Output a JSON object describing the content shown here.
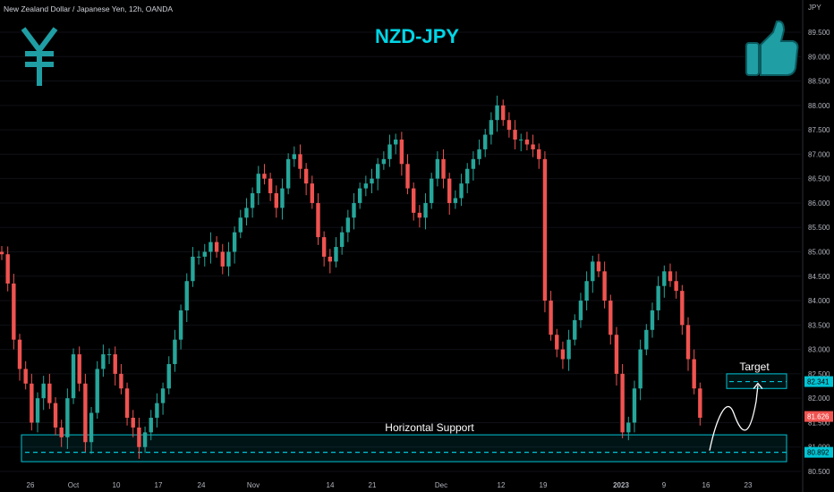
{
  "header": {
    "symbol_info": "New Zealand Dollar / Japanese Yen, 12h, OANDA"
  },
  "chart_data": {
    "type": "candlestick",
    "title": "NZD-JPY",
    "currency_label": "JPY",
    "y_axis_ticks": [
      "89.500",
      "89.000",
      "88.500",
      "88.000",
      "87.500",
      "87.000",
      "86.500",
      "86.000",
      "85.500",
      "85.000",
      "84.500",
      "84.000",
      "83.500",
      "83.000",
      "82.500",
      "82.000",
      "81.500",
      "81.000",
      "80.500"
    ],
    "ylim": [
      80.4,
      89.8
    ],
    "x_axis_ticks": [
      "26",
      "Oct",
      "10",
      "17",
      "24",
      "Nov",
      "14",
      "21",
      "Dec",
      "12",
      "19",
      "2023",
      "9",
      "16",
      "23"
    ],
    "closes": [
      84.95,
      84.35,
      83.2,
      82.6,
      82.3,
      81.5,
      82.0,
      82.3,
      81.9,
      81.4,
      81.2,
      82.0,
      82.9,
      82.3,
      81.1,
      81.7,
      82.6,
      82.9,
      82.9,
      82.5,
      82.2,
      81.6,
      81.4,
      81.0,
      81.3,
      81.6,
      81.9,
      82.2,
      82.7,
      83.2,
      83.8,
      84.4,
      84.9,
      84.9,
      85.0,
      85.2,
      85.0,
      84.7,
      85.0,
      85.4,
      85.7,
      85.9,
      86.2,
      86.6,
      86.5,
      86.2,
      85.9,
      86.3,
      86.9,
      87.0,
      86.7,
      86.4,
      86.0,
      85.3,
      84.9,
      84.8,
      85.1,
      85.4,
      85.7,
      86.0,
      86.3,
      86.4,
      86.5,
      86.8,
      86.9,
      87.2,
      87.3,
      86.8,
      86.3,
      85.8,
      85.7,
      86.0,
      86.5,
      86.9,
      86.5,
      86.0,
      86.1,
      86.4,
      86.7,
      86.9,
      87.1,
      87.4,
      87.7,
      88.0,
      87.7,
      87.5,
      87.3,
      87.3,
      87.2,
      87.1,
      86.9,
      84.0,
      83.3,
      83.0,
      82.8,
      83.2,
      83.6,
      84.0,
      84.4,
      84.8,
      84.6,
      84.0,
      83.3,
      82.5,
      81.3,
      81.5,
      82.2,
      83.0,
      83.4,
      83.8,
      84.3,
      84.6,
      84.4,
      84.2,
      83.5,
      82.8,
      82.2,
      81.6
    ],
    "support_zone": {
      "top": 81.25,
      "bottom": 80.7
    },
    "support_level": "80.892",
    "target_zone": {
      "top": 82.5,
      "bottom": 82.2
    },
    "target_level": "82.341",
    "last_price_label": "81.626",
    "annotations": {
      "support": "Horizontal Support",
      "target": "Target"
    },
    "colors": {
      "up": "#26a69a",
      "down": "#ef5350",
      "zone": "#00c4d4",
      "title": "#00d6e6",
      "icon": "#1f9ea4"
    }
  }
}
